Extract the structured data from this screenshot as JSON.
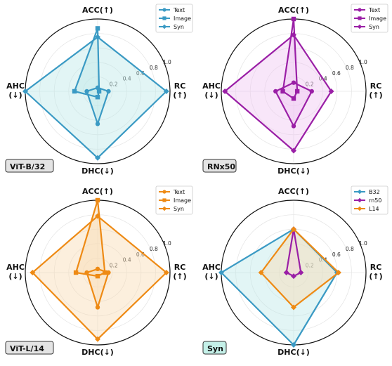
{
  "chart_data": [
    {
      "type": "radar",
      "panel_label": "ViT-B/32",
      "badge_color": "#e4e4e4",
      "axes": [
        {
          "key": "acc",
          "label": "ACC(↑)",
          "label_line2": ""
        },
        {
          "key": "rc",
          "label": "RC",
          "label_line2": "(↑)"
        },
        {
          "key": "dhc",
          "label": "DHC(↓)",
          "label_line2": ""
        },
        {
          "key": "ahc",
          "label": "AHC",
          "label_line2": "(↓)"
        }
      ],
      "rlim": [
        0,
        1.0
      ],
      "rticks": [
        "0.2",
        "0.4",
        "0.6",
        "0.8",
        "1.0"
      ],
      "legend": "top-right",
      "series": [
        {
          "name": "Text",
          "marker": "circle",
          "color": "#3a9ac4",
          "fill": "#bfe8e8",
          "values": [
            0.05,
            0.15,
            0.45,
            0.15
          ]
        },
        {
          "name": "Image",
          "marker": "square",
          "color": "#3a9ac4",
          "fill": "#bfe8e8",
          "values": [
            0.87,
            0.02,
            0.08,
            0.32
          ]
        },
        {
          "name": "Syn",
          "marker": "diamond",
          "color": "#3a9ac4",
          "fill": "#bfe8e8",
          "values": [
            0.75,
            0.95,
            0.92,
            1.0
          ]
        }
      ]
    },
    {
      "type": "radar",
      "panel_label": "RNx50",
      "badge_color": "#e4e4e4",
      "axes": [
        {
          "key": "acc",
          "label": "ACC(↑)",
          "label_line2": ""
        },
        {
          "key": "rc",
          "label": "RC",
          "label_line2": "(↑)"
        },
        {
          "key": "dhc",
          "label": "DHC(↓)",
          "label_line2": ""
        },
        {
          "key": "ahc",
          "label": "AHC",
          "label_line2": "(↓)"
        }
      ],
      "rlim": [
        0,
        1.0
      ],
      "rticks": [
        "0.2",
        "0.4",
        "0.6",
        "0.8",
        "1.0"
      ],
      "legend": "top-right",
      "series": [
        {
          "name": "Text",
          "marker": "circle",
          "color": "#9a1fa6",
          "fill": "#efc8f2",
          "values": [
            0.12,
            0.25,
            0.48,
            0.25
          ]
        },
        {
          "name": "Image",
          "marker": "square",
          "color": "#9a1fa6",
          "fill": "#efc8f2",
          "values": [
            1.0,
            0.05,
            0.1,
            0.15
          ]
        },
        {
          "name": "Syn",
          "marker": "diamond",
          "color": "#9a1fa6",
          "fill": "#efc8f2",
          "values": [
            0.78,
            0.52,
            0.82,
            0.95
          ]
        }
      ]
    },
    {
      "type": "radar",
      "panel_label": "ViT-L/14",
      "badge_color": "#e4e4e4",
      "axes": [
        {
          "key": "acc",
          "label": "ACC(↑)",
          "label_line2": ""
        },
        {
          "key": "rc",
          "label": "RC",
          "label_line2": "(↑)"
        },
        {
          "key": "dhc",
          "label": "DHC(↓)",
          "label_line2": ""
        },
        {
          "key": "ahc",
          "label": "AHC",
          "label_line2": "(↓)"
        }
      ],
      "rlim": [
        0,
        1.0
      ],
      "rticks": [
        "0.2",
        "0.4",
        "0.6",
        "0.8",
        "1.0"
      ],
      "legend": "top-right",
      "series": [
        {
          "name": "Text",
          "marker": "circle",
          "color": "#ee8a14",
          "fill": "#f8dcb4",
          "values": [
            0.05,
            0.15,
            0.48,
            0.15
          ]
        },
        {
          "name": "Image",
          "marker": "square",
          "color": "#ee8a14",
          "fill": "#f8dcb4",
          "values": [
            1.0,
            0.1,
            0.05,
            0.3
          ]
        },
        {
          "name": "Syn",
          "marker": "diamond",
          "color": "#ee8a14",
          "fill": "#f8dcb4",
          "values": [
            0.78,
            0.95,
            0.92,
            0.9
          ]
        }
      ]
    },
    {
      "type": "radar",
      "panel_label": "Syn",
      "badge_color": "#c4f0e8",
      "axes": [
        {
          "key": "acc",
          "label": "ACC(↑)",
          "label_line2": ""
        },
        {
          "key": "rc",
          "label": "RC",
          "label_line2": "(↑)"
        },
        {
          "key": "dhc",
          "label": "DHC(↓)",
          "label_line2": ""
        },
        {
          "key": "ahc",
          "label": "AHC",
          "label_line2": "(↓)"
        }
      ],
      "rlim": [
        0,
        1.0
      ],
      "rticks": [
        "0.2",
        "0.4",
        "0.6",
        "0.8",
        "1.0"
      ],
      "legend": "top-right",
      "series": [
        {
          "name": "B32",
          "marker": "diamond",
          "color": "#3a9ac4",
          "fill": "#bfe8e8",
          "values": [
            0.6,
            0.6,
            1.0,
            1.0
          ]
        },
        {
          "name": "rn50",
          "marker": "diamond",
          "color": "#9a1fa6",
          "fill": "#efc8f2",
          "values": [
            0.6,
            0.1,
            0.05,
            0.1
          ]
        },
        {
          "name": "L14",
          "marker": "diamond",
          "color": "#ee8a14",
          "fill": "#f8dcb4",
          "values": [
            0.6,
            0.62,
            0.48,
            0.45
          ]
        }
      ]
    }
  ]
}
